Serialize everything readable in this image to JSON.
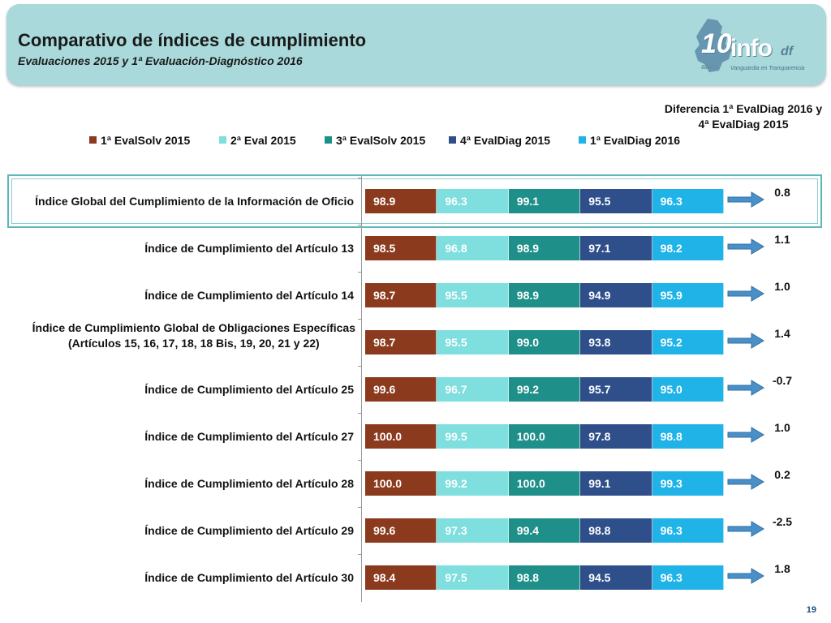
{
  "header": {
    "title": "Comparativo de índices de cumplimiento",
    "subtitle": "Evaluaciones 2015 y 1ª Evaluación-Diagnóstico 2016",
    "logo": {
      "number": "10",
      "anos": "años",
      "brand": "info",
      "suffix": "df",
      "tagline": "Vanguardia en Transparencia"
    }
  },
  "diff_header": "Diferencia 1ª EvalDiag 2016 y 4ª EvalDiag 2015",
  "page_number": "19",
  "chart_data": {
    "type": "bar",
    "orientation": "horizontal-segmented",
    "categories": [
      "Índice Global del Cumplimiento de la Información de Oficio",
      "Índice de Cumplimiento del Artículo 13",
      "Índice de Cumplimiento del Artículo 14",
      "Índice de Cumplimiento Global de Obligaciones Específicas (Artículos 15, 16, 17, 18, 18 Bis, 19, 20, 21 y 22)",
      "Índice de Cumplimiento del Artículo 25",
      "Índice de Cumplimiento del Artículo 27",
      "Índice de Cumplimiento del Artículo 28",
      "Índice de Cumplimiento del Artículo 29",
      "Índice de Cumplimiento del Artículo 30"
    ],
    "category_lines": [
      [
        "Índice Global del Cumplimiento de la Información de Oficio"
      ],
      [
        "Índice de Cumplimiento del Artículo 13"
      ],
      [
        "Índice de Cumplimiento del Artículo 14"
      ],
      [
        "Índice de Cumplimiento Global de Obligaciones Específicas",
        "(Artículos 15, 16, 17, 18, 18 Bis, 19, 20, 21 y 22)"
      ],
      [
        "Índice de Cumplimiento del Artículo 25"
      ],
      [
        "Índice de Cumplimiento del Artículo 27"
      ],
      [
        "Índice de Cumplimiento del Artículo 28"
      ],
      [
        "Índice de Cumplimiento del Artículo 29"
      ],
      [
        "Índice de Cumplimiento del Artículo 30"
      ]
    ],
    "series": [
      {
        "name": "1ª EvalSolv 2015",
        "color": "#8b3a1e",
        "text_color": "#ffffff",
        "values": [
          "98.9",
          "98.5",
          "98.7",
          "98.7",
          "99.6",
          "100.0",
          "100.0",
          "99.6",
          "98.4"
        ]
      },
      {
        "name": "2ª Eval 2015",
        "color": "#7fdede",
        "text_color": "#ffffff",
        "values": [
          "96.3",
          "96.8",
          "95.5",
          "95.5",
          "96.7",
          "99.5",
          "99.2",
          "97.3",
          "97.5"
        ]
      },
      {
        "name": "3ª EvalSolv 2015",
        "color": "#1f8f8a",
        "text_color": "#ffffff",
        "values": [
          "99.1",
          "98.9",
          "98.9",
          "99.0",
          "99.2",
          "100.0",
          "100.0",
          "99.4",
          "98.8"
        ]
      },
      {
        "name": "4ª EvalDiag 2015",
        "color": "#2f4f8a",
        "text_color": "#ffffff",
        "values": [
          "95.5",
          "97.1",
          "94.9",
          "93.8",
          "95.7",
          "97.8",
          "99.1",
          "98.8",
          "94.5"
        ]
      },
      {
        "name": "1ª EvalDiag 2016",
        "color": "#1fb3e8",
        "text_color": "#ffffff",
        "values": [
          "96.3",
          "98.2",
          "95.9",
          "95.2",
          "95.0",
          "98.8",
          "99.3",
          "96.3",
          "96.3"
        ]
      }
    ],
    "differences": [
      "0.8",
      "1.1",
      "1.0",
      "1.4",
      "-0.7",
      "1.0",
      "0.2",
      "-2.5",
      "1.8"
    ],
    "legend_position": "top",
    "highlighted_category_index": 0
  }
}
